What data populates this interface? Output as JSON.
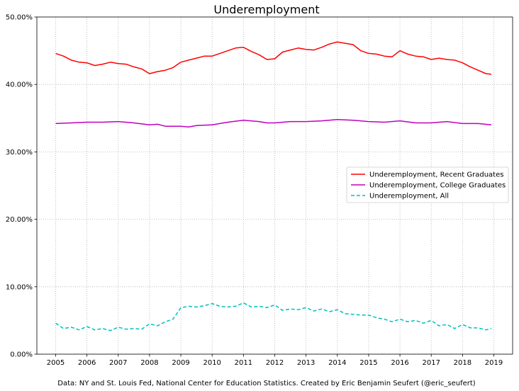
{
  "chart_data": {
    "type": "line",
    "title": "Underemployment",
    "xlabel": "",
    "ylabel": "",
    "xlim": [
      2004.4,
      2019.6
    ],
    "ylim": [
      0,
      50
    ],
    "x_ticks": [
      2005,
      2006,
      2007,
      2008,
      2009,
      2010,
      2011,
      2012,
      2013,
      2014,
      2015,
      2016,
      2017,
      2018,
      2019
    ],
    "x_tick_labels": [
      "2005",
      "2006",
      "2007",
      "2008",
      "2009",
      "2010",
      "2011",
      "2012",
      "2013",
      "2014",
      "2015",
      "2016",
      "2017",
      "2018",
      "2019"
    ],
    "y_ticks": [
      0,
      10,
      20,
      30,
      40,
      50
    ],
    "y_tick_labels": [
      "0.00%",
      "10.00%",
      "20.00%",
      "30.00%",
      "40.00%",
      "50.00%"
    ],
    "grid": true,
    "legend_position": "center-right",
    "series": [
      {
        "name": "Underemployment, Recent Graduates",
        "color": "#ff0000",
        "style": "solid",
        "x": [
          2005.0,
          2005.25,
          2005.5,
          2005.75,
          2006.0,
          2006.25,
          2006.5,
          2006.75,
          2007.0,
          2007.25,
          2007.5,
          2007.75,
          2008.0,
          2008.25,
          2008.5,
          2008.75,
          2009.0,
          2009.25,
          2009.5,
          2009.75,
          2010.0,
          2010.25,
          2010.5,
          2010.75,
          2011.0,
          2011.25,
          2011.5,
          2011.75,
          2012.0,
          2012.25,
          2012.5,
          2012.75,
          2013.0,
          2013.25,
          2013.5,
          2013.75,
          2014.0,
          2014.25,
          2014.5,
          2014.75,
          2015.0,
          2015.25,
          2015.5,
          2015.75,
          2016.0,
          2016.25,
          2016.5,
          2016.75,
          2017.0,
          2017.25,
          2017.5,
          2017.75,
          2018.0,
          2018.25,
          2018.5,
          2018.75,
          2018.92
        ],
        "values": [
          44.6,
          44.2,
          43.6,
          43.3,
          43.2,
          42.8,
          43.0,
          43.3,
          43.1,
          43.0,
          42.6,
          42.3,
          41.6,
          41.9,
          42.1,
          42.5,
          43.3,
          43.6,
          43.9,
          44.2,
          44.2,
          44.6,
          45.0,
          45.4,
          45.5,
          44.9,
          44.4,
          43.7,
          43.8,
          44.8,
          45.1,
          45.4,
          45.2,
          45.1,
          45.5,
          46.0,
          46.3,
          46.1,
          45.9,
          45.0,
          44.6,
          44.5,
          44.2,
          44.1,
          45.0,
          44.5,
          44.2,
          44.1,
          43.7,
          43.9,
          43.7,
          43.6,
          43.2,
          42.6,
          42.1,
          41.6,
          41.5
        ]
      },
      {
        "name": "Underemployment, College Graduates",
        "color": "#bf00bf",
        "style": "solid",
        "x": [
          2005.0,
          2005.5,
          2006.0,
          2006.5,
          2007.0,
          2007.5,
          2008.0,
          2008.25,
          2008.5,
          2009.0,
          2009.25,
          2009.5,
          2010.0,
          2010.5,
          2011.0,
          2011.5,
          2011.75,
          2012.0,
          2012.5,
          2013.0,
          2013.5,
          2014.0,
          2014.5,
          2015.0,
          2015.5,
          2016.0,
          2016.5,
          2017.0,
          2017.5,
          2018.0,
          2018.5,
          2018.92
        ],
        "values": [
          34.2,
          34.3,
          34.4,
          34.4,
          34.5,
          34.3,
          34.0,
          34.1,
          33.8,
          33.8,
          33.7,
          33.9,
          34.0,
          34.4,
          34.7,
          34.5,
          34.3,
          34.3,
          34.5,
          34.5,
          34.6,
          34.8,
          34.7,
          34.5,
          34.4,
          34.6,
          34.3,
          34.3,
          34.5,
          34.2,
          34.2,
          34.0
        ]
      },
      {
        "name": "Underemployment, All",
        "color": "#00bfbf",
        "style": "dashed",
        "x": [
          2005.0,
          2005.25,
          2005.5,
          2005.75,
          2006.0,
          2006.25,
          2006.5,
          2006.75,
          2007.0,
          2007.25,
          2007.5,
          2007.75,
          2008.0,
          2008.25,
          2008.5,
          2008.75,
          2009.0,
          2009.25,
          2009.5,
          2009.75,
          2010.0,
          2010.25,
          2010.5,
          2010.75,
          2011.0,
          2011.25,
          2011.5,
          2011.75,
          2012.0,
          2012.25,
          2012.5,
          2012.75,
          2013.0,
          2013.25,
          2013.5,
          2013.75,
          2014.0,
          2014.25,
          2014.5,
          2014.75,
          2015.0,
          2015.25,
          2015.5,
          2015.75,
          2016.0,
          2016.25,
          2016.5,
          2016.75,
          2017.0,
          2017.25,
          2017.5,
          2017.75,
          2018.0,
          2018.25,
          2018.5,
          2018.75,
          2018.92
        ],
        "values": [
          4.6,
          3.8,
          4.0,
          3.6,
          4.1,
          3.6,
          3.8,
          3.5,
          4.0,
          3.7,
          3.8,
          3.7,
          4.5,
          4.2,
          4.8,
          5.2,
          6.9,
          7.1,
          7.0,
          7.2,
          7.5,
          7.1,
          7.0,
          7.1,
          7.6,
          7.0,
          7.1,
          6.9,
          7.3,
          6.5,
          6.7,
          6.6,
          6.9,
          6.4,
          6.7,
          6.3,
          6.6,
          6.0,
          5.9,
          5.8,
          5.8,
          5.4,
          5.2,
          4.8,
          5.2,
          4.8,
          5.0,
          4.6,
          5.0,
          4.2,
          4.4,
          3.8,
          4.4,
          3.9,
          3.9,
          3.6,
          3.8
        ]
      }
    ]
  },
  "footer": {
    "source_text": "Data: NY and St. Louis Fed, National Center for Education Statistics. Created by Eric Benjamin Seufert (@eric_seufert)"
  }
}
